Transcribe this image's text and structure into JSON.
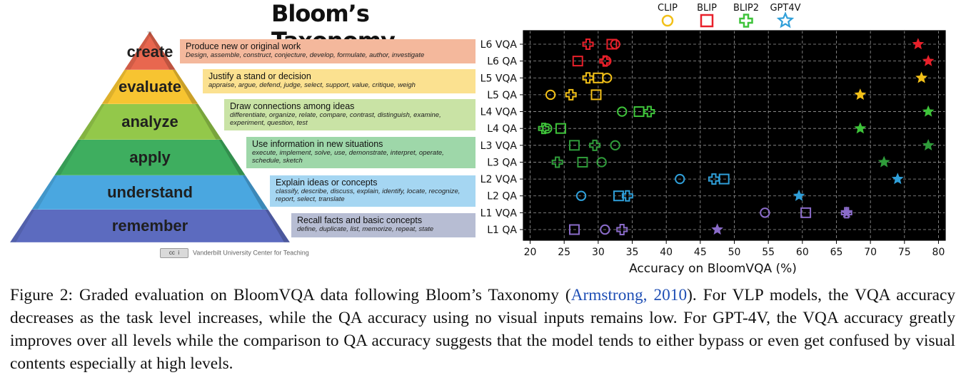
{
  "pyramid": {
    "title": "Bloom’s Taxonomy",
    "levels": [
      {
        "name": "create",
        "heading": "Produce new or original work",
        "verbs": [
          "Design, assemble, construct, conjecture, develop, formulate, author, investigate"
        ],
        "color": "#e8674f",
        "box_color": "#f4b89c"
      },
      {
        "name": "evaluate",
        "heading": "Justify a stand or decision",
        "verbs": [
          "appraise, argue, defend, judge, select, support, value, critique, weigh"
        ],
        "color": "#f7c431",
        "box_color": "#fbe190"
      },
      {
        "name": "analyze",
        "heading": "Draw connections among ideas",
        "verbs": [
          "differentiate, organize, relate, compare, contrast, distinguish, examine,",
          "experiment, question, test"
        ],
        "color": "#93c84a",
        "box_color": "#c9e3a5"
      },
      {
        "name": "apply",
        "heading": "Use information in new situations",
        "verbs": [
          "execute, implement, solve, use, demonstrate, interpret, operate,",
          "schedule, sketch"
        ],
        "color": "#3eae5f",
        "box_color": "#9ed7a9"
      },
      {
        "name": "understand",
        "heading": "Explain ideas or concepts",
        "verbs": [
          "classify, describe, discuss, explain, identify, locate, recognize,",
          "report, select, translate"
        ],
        "color": "#4aa7e0",
        "box_color": "#a5d6f2"
      },
      {
        "name": "remember",
        "heading": "Recall facts and basic concepts",
        "verbs": [
          "define, duplicate, list, memorize, repeat, state"
        ],
        "color": "#5c6bbf",
        "box_color": "#b7bdd3"
      }
    ],
    "credit": "Vanderbilt University Center for Teaching"
  },
  "chart_data": {
    "type": "scatter",
    "xlabel": "Accuracy on BloomVQA (%)",
    "ylabel": "",
    "xlim": [
      19,
      81
    ],
    "xticks": [
      20,
      25,
      30,
      35,
      40,
      45,
      50,
      55,
      60,
      65,
      70,
      75,
      80
    ],
    "grid": true,
    "legend_position": "top",
    "categories": [
      "L6 VQA",
      "L6 QA",
      "L5 VQA",
      "L5 QA",
      "L4 VQA",
      "L4 QA",
      "L3 VQA",
      "L3 QA",
      "L2 VQA",
      "L2 QA",
      "L1 VQA",
      "L1 QA"
    ],
    "category_colors": [
      "#e8202a",
      "#e8202a",
      "#f2c018",
      "#f2c018",
      "#3ec33a",
      "#3ec33a",
      "#2f9c3a",
      "#2f9c3a",
      "#2f9fd9",
      "#2f9fd9",
      "#8a6bc9",
      "#8a6bc9"
    ],
    "series": [
      {
        "name": "CLIP",
        "marker": "circle",
        "values": [
          32.5,
          31.2,
          31.3,
          23.0,
          33.5,
          22.5,
          32.5,
          30.5,
          42.0,
          27.5,
          54.5,
          31.0
        ]
      },
      {
        "name": "BLIP",
        "marker": "square",
        "values": [
          32.0,
          27.0,
          30.0,
          29.7,
          36.0,
          24.5,
          26.5,
          27.7,
          48.5,
          33.0,
          60.5,
          26.5
        ]
      },
      {
        "name": "BLIP2",
        "marker": "plus",
        "values": [
          28.5,
          31.0,
          28.5,
          26.0,
          37.5,
          22.0,
          29.5,
          24.0,
          47.0,
          34.3,
          66.5,
          33.5
        ]
      },
      {
        "name": "GPT4V",
        "marker": "star",
        "values": [
          77.0,
          78.5,
          77.5,
          68.5,
          78.5,
          68.5,
          78.5,
          72.0,
          74.0,
          59.5,
          66.5,
          47.5
        ]
      }
    ],
    "legend_colors": [
      "#f2c018",
      "#e8202a",
      "#3ec33a",
      "#2f9fd9"
    ]
  },
  "caption": {
    "pre": "Figure 2: Graded evaluation on BloomVQA data following Bloom’s Taxonomy (",
    "cite_author": "Armstrong",
    "cite_sep": ", ",
    "cite_year": "2010",
    "post": "). For VLP models, the VQA accuracy decreases as the task level increases, while the QA accuracy using no visual inputs remains low. For GPT-4V, the VQA accuracy greatly improves over all levels while the comparison to QA accuracy suggests that the model tends to either bypass or even get confused by visual contents especially at high levels."
  }
}
